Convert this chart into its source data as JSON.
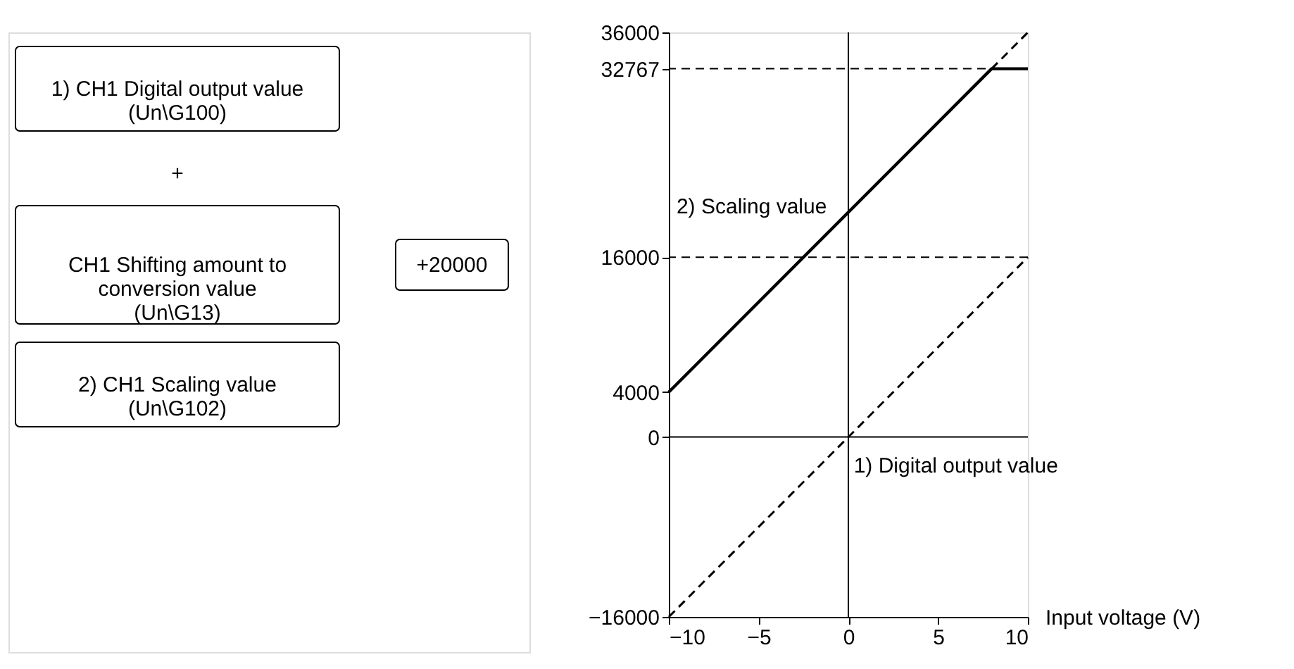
{
  "chart_data": {
    "type": "line",
    "xlabel": "Input voltage (V)",
    "xlim": [
      -10,
      10
    ],
    "xticks": [
      -10,
      -5,
      0,
      5,
      10
    ],
    "ylim": [
      -16000,
      36000
    ],
    "yticks": [
      -16000,
      0,
      4000,
      16000,
      32767,
      36000
    ],
    "series": [
      {
        "name": "2) Scaling value",
        "color": "#000000",
        "line_style": "solid",
        "x": [
          -10,
          7.98,
          10
        ],
        "values": [
          4000,
          32767,
          32767
        ]
      },
      {
        "name": "1) Digital output value",
        "color": "#000000",
        "line_style": "dashed",
        "x": [
          -10,
          10
        ],
        "values": [
          -16000,
          16000
        ]
      },
      {
        "color": "#000000",
        "line_style": "dashed",
        "x": [
          7.98,
          10
        ],
        "values": [
          32767,
          36000
        ]
      }
    ],
    "ref_lines": [
      {
        "axis": "y",
        "value": 0,
        "line_style": "solid"
      },
      {
        "axis": "x",
        "value": 0,
        "line_style": "solid"
      },
      {
        "axis": "y",
        "value": 16000,
        "line_style": "dashed"
      },
      {
        "axis": "y",
        "value": 32767,
        "line_style": "dashed"
      }
    ],
    "annotations": [
      "1) CH1 Digital output value\n(Un\\G100)",
      "+",
      "CH1 Shifting amount to\nconversion value\n(Un\\G13)",
      "+20000",
      "2) CH1 Scaling value\n(Un\\G102)"
    ],
    "grid": false
  }
}
